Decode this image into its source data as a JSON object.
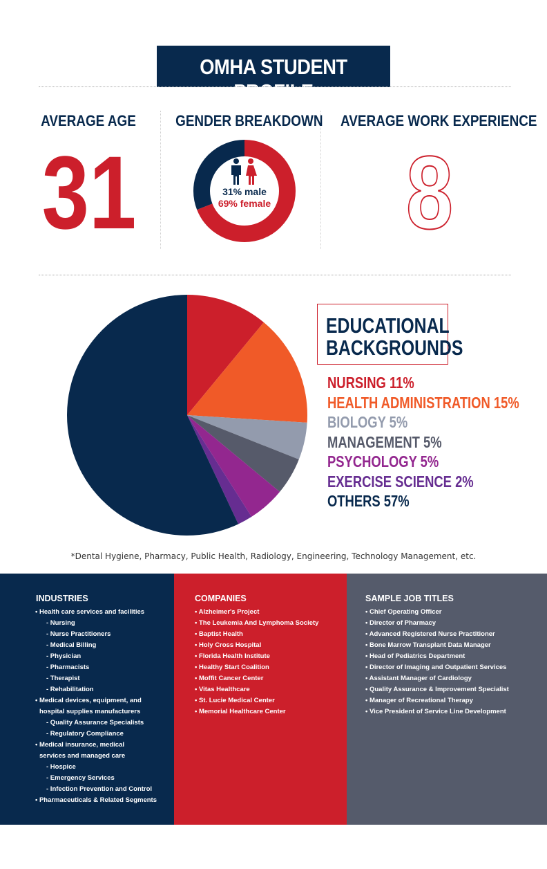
{
  "title": "OMHA STUDENT PROFILE",
  "stats": {
    "age_label": "AVERAGE AGE",
    "age_value": "31",
    "gender_label": "GENDER BREAKDOWN",
    "male_text": "31% male",
    "female_text": "69% female",
    "male_pct": 31,
    "female_pct": 69,
    "experience_label": "AVERAGE WORK EXPERIENCE",
    "experience_value": "8"
  },
  "education": {
    "title_line1": "EDUCATIONAL",
    "title_line2": "BACKGROUNDS",
    "footnote": "*Dental Hygiene, Pharmacy, Public Health, Radiology, Engineering, Technology Management, etc."
  },
  "chart_data": {
    "type": "pie",
    "title": "EDUCATIONAL BACKGROUNDS",
    "slices": [
      {
        "label": "NURSING 11%",
        "value": 11,
        "color": "#cc1f2b"
      },
      {
        "label": "HEALTH ADMINISTRATION 15%",
        "value": 15,
        "color": "#f05a28"
      },
      {
        "label": "BIOLOGY 5%",
        "value": 5,
        "color": "#939bad"
      },
      {
        "label": "MANAGEMENT 5%",
        "value": 5,
        "color": "#565a6a"
      },
      {
        "label": "PSYCHOLOGY 5%",
        "value": 5,
        "color": "#93278f"
      },
      {
        "label": "EXERCISE SCIENCE 2%",
        "value": 2,
        "color": "#662d91"
      },
      {
        "label": "OTHERS 57%",
        "value": 57,
        "color": "#08294d"
      }
    ],
    "legend_placement": "right"
  },
  "industries": {
    "title": "INDUSTRIES",
    "items": [
      {
        "text": "• Health care services and facilities",
        "level": 0
      },
      {
        "text": "- Nursing",
        "level": 1
      },
      {
        "text": "- Nurse Practitioners",
        "level": 1
      },
      {
        "text": "- Medical Billing",
        "level": 1
      },
      {
        "text": "- Physician",
        "level": 1
      },
      {
        "text": "- Pharmacists",
        "level": 1
      },
      {
        "text": "- Therapist",
        "level": 1
      },
      {
        "text": "- Rehabilitation",
        "level": 1
      },
      {
        "text": "• Medical devices, equipment, and",
        "level": 0
      },
      {
        "text": "hospital supplies manufacturers",
        "level": 2
      },
      {
        "text": "- Quality Assurance Specialists",
        "level": 1
      },
      {
        "text": "- Regulatory Compliance",
        "level": 1
      },
      {
        "text": "• Medical insurance, medical",
        "level": 0
      },
      {
        "text": "services and managed care",
        "level": 2
      },
      {
        "text": "- Hospice",
        "level": 1
      },
      {
        "text": "- Emergency Services",
        "level": 1
      },
      {
        "text": "- Infection Prevention and Control",
        "level": 1
      },
      {
        "text": "• Pharmaceuticals & Related Segments",
        "level": 0
      }
    ]
  },
  "companies": {
    "title": "COMPANIES",
    "items": [
      "• Alzheimer's Project",
      "• The Leukemia And Lymphoma Society",
      "• Baptist Health",
      "• Holy Cross Hospital",
      "• Florida Health Institute",
      "• Healthy Start Coalition",
      "• Moffit Cancer Center",
      "• Vitas Healthcare",
      "• St. Lucie Medical Center",
      "• Memorial Healthcare Center"
    ]
  },
  "job_titles": {
    "title": "SAMPLE JOB TITLES",
    "items": [
      "• Chief Operating Officer",
      "• Director of Pharmacy",
      "• Advanced Registered Nurse Practitioner",
      "• Bone Marrow Transplant Data Manager",
      "• Head of Pediatrics Department",
      "• Director of Imaging and Outpatient Services",
      "• Assistant Manager of Cardiology",
      "• Quality Assurance & Improvement Specialist",
      "• Manager of Recreational Therapy",
      "• Vice President of Service Line Development"
    ]
  },
  "colors": {
    "navy": "#08294d",
    "red": "#cc1f2b",
    "gray": "#555b6b"
  }
}
